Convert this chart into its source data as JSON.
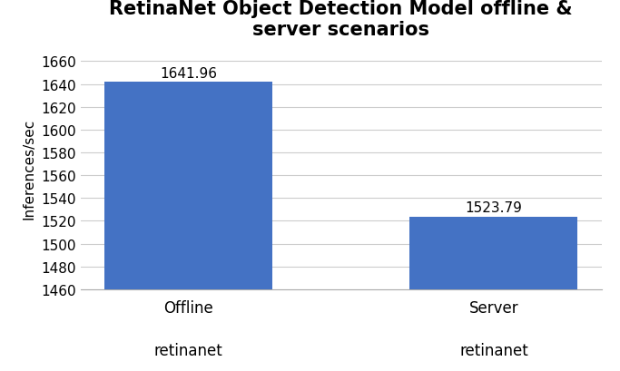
{
  "title": "RetinaNet Object Detection Model offline &\nserver scenarios",
  "categories": [
    "Offline",
    "Server"
  ],
  "sublabels": [
    "retinanet",
    "retinanet"
  ],
  "values": [
    1641.96,
    1523.79
  ],
  "bar_color": "#4472C4",
  "ylabel": "Inferences/sec",
  "ylim": [
    1460,
    1672
  ],
  "yticks": [
    1460,
    1480,
    1500,
    1520,
    1540,
    1560,
    1580,
    1600,
    1620,
    1640,
    1660
  ],
  "bar_labels": [
    "1641.96",
    "1523.79"
  ],
  "title_fontsize": 15,
  "label_fontsize": 11,
  "tick_fontsize": 11,
  "bar_label_fontsize": 11,
  "xtick_fontsize": 12,
  "background_color": "#ffffff",
  "grid_color": "#cccccc",
  "bar_width": 0.55
}
